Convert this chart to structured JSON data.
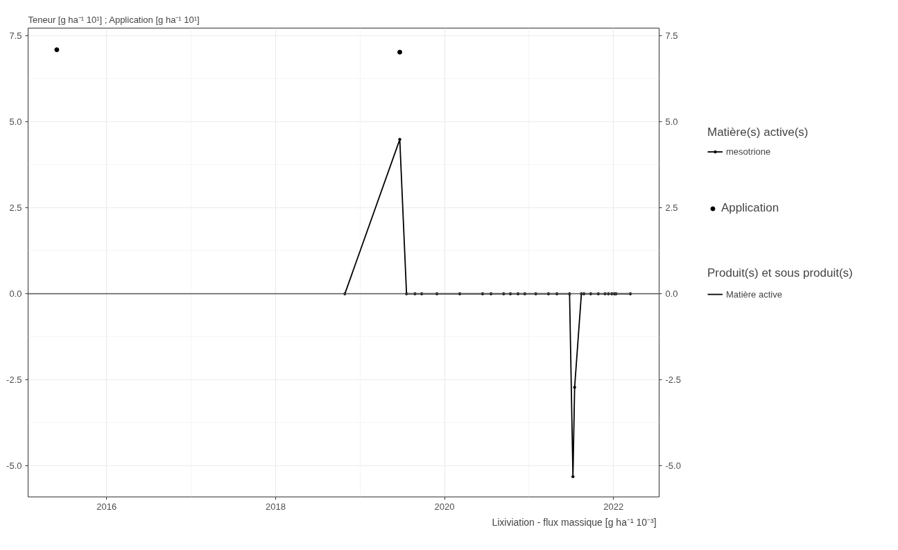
{
  "chart_data": {
    "type": "line",
    "title": "Teneur [g  ha⁻¹ 10¹] ; Application [g  ha⁻¹ 10¹]",
    "xlabel": "Lixiviation - flux massique [g  ha⁻¹ 10⁻³]",
    "legend_title": "Matière(s) active(s)",
    "annotations": [
      "Produit(s) et sous produit(s)",
      "Matière active"
    ],
    "series": [
      {
        "name": "mesotrione",
        "color": "#000000",
        "marker": "circle",
        "x": [
          2018.82,
          2019.47,
          2019.55,
          2019.65,
          2019.73,
          2019.91,
          2020.18,
          2020.45,
          2020.55,
          2020.7,
          2020.78,
          2020.87,
          2020.95,
          2021.08,
          2021.23,
          2021.33,
          2021.48,
          2021.52,
          2021.54,
          2021.62,
          2021.65,
          2021.73,
          2021.82,
          2021.9,
          2021.94,
          2021.98,
          2022.01,
          2022.03,
          2022.2
        ],
        "values": [
          0,
          4.49,
          0,
          0,
          0,
          0,
          0,
          0,
          0,
          0,
          0,
          0,
          0,
          0,
          0,
          0,
          0,
          -5.32,
          -2.72,
          0,
          0,
          0,
          0,
          0,
          0,
          0,
          0,
          0,
          0
        ]
      },
      {
        "name": "Application",
        "type": "scatter",
        "color": "#000000",
        "marker": "circle",
        "x": [
          2015.41,
          2019.47
        ],
        "values": [
          7.1,
          7.03
        ]
      }
    ],
    "xlim": [
      2015.07,
      2022.54
    ],
    "xticks": [
      2016,
      2018,
      2020,
      2022
    ],
    "ylim": [
      -5.91,
      7.73
    ],
    "yticks": [
      {
        "value": -5,
        "label": "-5.0"
      },
      {
        "value": -2.5,
        "label": "-2.5"
      },
      {
        "value": 0,
        "label": "0.0"
      },
      {
        "value": 2.5,
        "label": "2.5"
      },
      {
        "value": 5,
        "label": "5.0"
      },
      {
        "value": 7.5,
        "label": "7.5"
      }
    ],
    "y2lim": [
      -5.91,
      7.73
    ],
    "y2ticks": [
      {
        "value": -5,
        "label": "-5.0"
      },
      {
        "value": -2.5,
        "label": "-2.5"
      },
      {
        "value": 0,
        "label": "0.0"
      },
      {
        "value": 2.5,
        "label": "2.5"
      },
      {
        "value": 5,
        "label": "5.0"
      },
      {
        "value": 7.5,
        "label": "7.5"
      }
    ],
    "ref_lines": [
      {
        "axis": "y",
        "value": 0,
        "color": "#555555"
      }
    ],
    "grid": true,
    "legend": "right",
    "line_style": "solid"
  }
}
